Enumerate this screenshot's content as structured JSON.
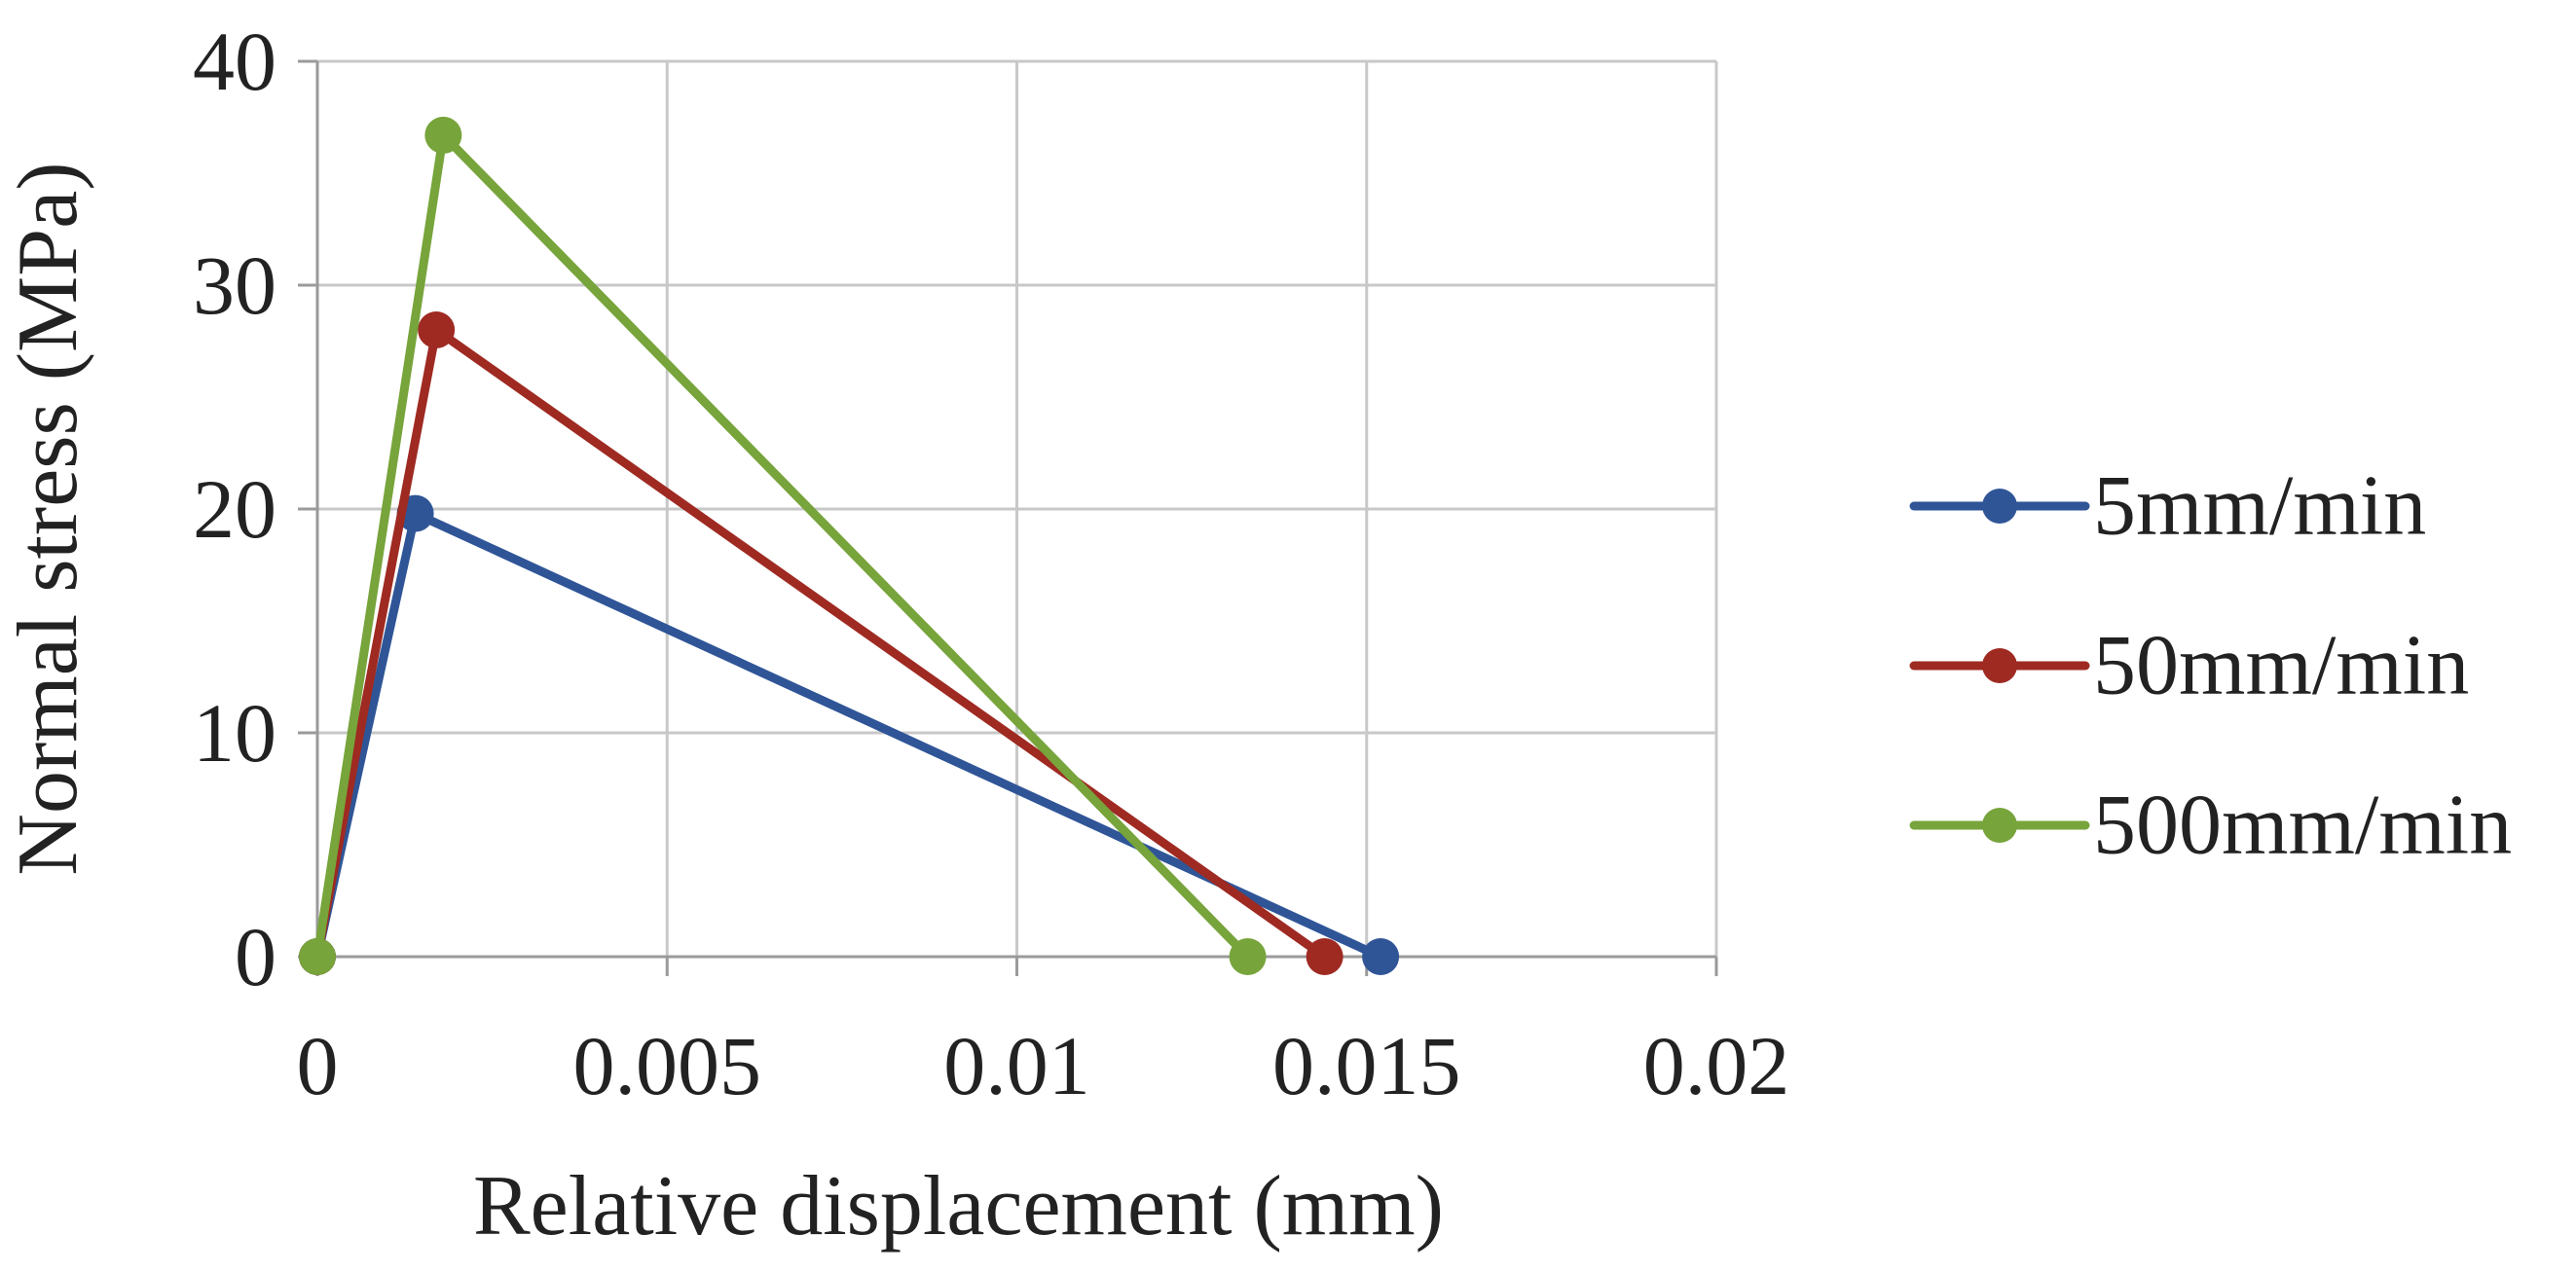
{
  "chart_data": {
    "type": "line",
    "title": "",
    "xlabel": "Relative displacement (mm)",
    "ylabel": "Normal stress (MPa)",
    "xlim": [
      0,
      0.02
    ],
    "ylim": [
      0,
      40
    ],
    "xticks": [
      0,
      0.005,
      0.01,
      0.015,
      0.02
    ],
    "yticks": [
      0,
      10,
      20,
      30,
      40
    ],
    "xtick_labels": [
      "0",
      "0.005",
      "0.01",
      "0.015",
      "0.02"
    ],
    "ytick_labels": [
      "0",
      "10",
      "20",
      "30",
      "40"
    ],
    "grid": true,
    "legend_position": "right",
    "series": [
      {
        "name": "5mm/min",
        "color": "#2f5597",
        "x": [
          0,
          0.0014,
          0.0152
        ],
        "y": [
          0,
          19.8,
          0
        ]
      },
      {
        "name": "50mm/min",
        "color": "#9e2a22",
        "x": [
          0,
          0.0017,
          0.0144
        ],
        "y": [
          0,
          28.0,
          0
        ]
      },
      {
        "name": "500mm/min",
        "color": "#77a43b",
        "x": [
          0,
          0.0018,
          0.0133
        ],
        "y": [
          0,
          36.7,
          0
        ]
      }
    ]
  }
}
